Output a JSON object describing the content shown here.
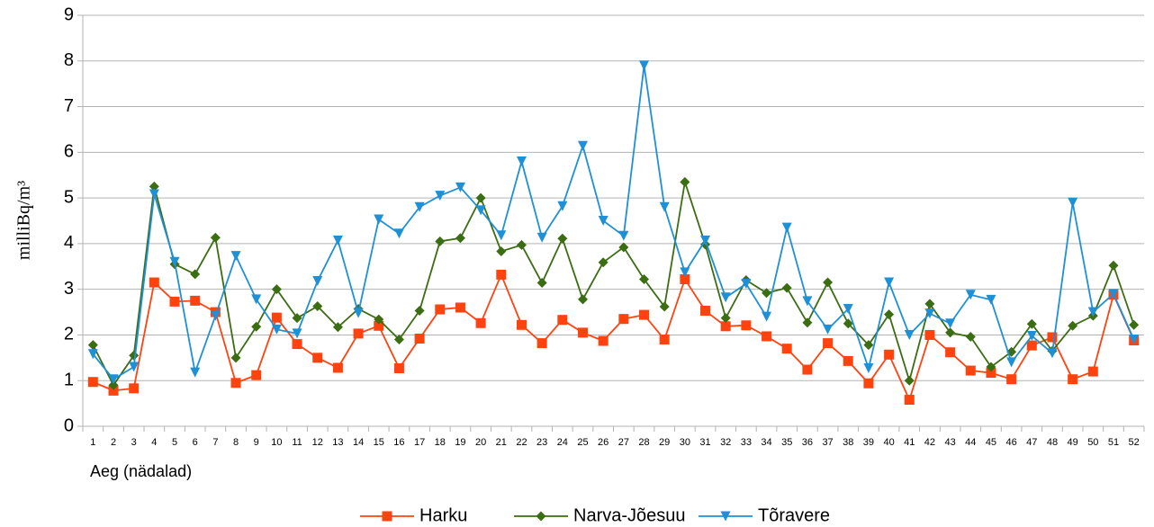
{
  "chart_data": {
    "type": "line",
    "y_label": "milliBq/m³",
    "x_label": "Aeg (nädalad)",
    "categories": [
      1,
      2,
      3,
      4,
      5,
      6,
      7,
      8,
      9,
      10,
      11,
      12,
      13,
      14,
      15,
      16,
      17,
      18,
      19,
      20,
      21,
      22,
      23,
      24,
      25,
      26,
      27,
      28,
      29,
      30,
      31,
      32,
      33,
      34,
      35,
      36,
      37,
      38,
      39,
      40,
      41,
      42,
      43,
      44,
      45,
      46,
      47,
      48,
      49,
      50,
      51,
      52
    ],
    "ylim": [
      0,
      9
    ],
    "yticks": [
      0,
      1,
      2,
      3,
      4,
      5,
      6,
      7,
      8,
      9
    ],
    "grid": true,
    "legend": "bottom",
    "series": [
      {
        "name": "Harku",
        "color": "#ff420e",
        "marker": "square",
        "values": [
          0.97,
          0.78,
          0.83,
          3.15,
          2.73,
          2.75,
          2.5,
          0.95,
          1.12,
          2.38,
          1.8,
          1.5,
          1.28,
          2.03,
          2.2,
          1.27,
          1.92,
          2.56,
          2.6,
          2.26,
          3.32,
          2.22,
          1.82,
          2.33,
          2.05,
          1.87,
          2.35,
          2.44,
          1.9,
          3.22,
          2.53,
          2.19,
          2.21,
          1.97,
          1.7,
          1.24,
          1.82,
          1.43,
          0.94,
          1.57,
          0.58,
          2.0,
          1.62,
          1.22,
          1.17,
          1.03,
          1.77,
          1.95,
          1.03,
          1.2,
          2.88,
          1.88
        ]
      },
      {
        "name": "Narva-Jõesuu",
        "color": "#3b6d12",
        "marker": "diamond",
        "values": [
          1.78,
          0.9,
          1.55,
          5.25,
          3.55,
          3.33,
          4.13,
          1.5,
          2.18,
          3.0,
          2.37,
          2.63,
          2.17,
          2.57,
          2.34,
          1.9,
          2.53,
          4.05,
          4.12,
          5.0,
          3.83,
          3.97,
          3.14,
          4.11,
          2.78,
          3.59,
          3.92,
          3.22,
          2.62,
          5.35,
          3.98,
          2.37,
          3.2,
          2.92,
          3.03,
          2.27,
          3.15,
          2.25,
          1.78,
          2.45,
          1.0,
          2.68,
          2.05,
          1.96,
          1.3,
          1.63,
          2.24,
          1.65,
          2.2,
          2.42,
          3.52,
          2.22
        ]
      },
      {
        "name": "Tõravere",
        "color": "#1e90d6",
        "marker": "triangle-down",
        "values": [
          1.58,
          1.03,
          1.3,
          5.08,
          3.6,
          1.18,
          2.42,
          3.73,
          2.78,
          2.12,
          2.03,
          3.18,
          4.07,
          2.48,
          4.53,
          4.22,
          4.8,
          5.05,
          5.23,
          4.73,
          4.18,
          5.8,
          4.13,
          4.82,
          6.14,
          4.5,
          4.17,
          7.9,
          4.8,
          3.37,
          4.07,
          2.82,
          3.12,
          2.4,
          4.35,
          2.74,
          2.12,
          2.57,
          1.27,
          3.15,
          2.0,
          2.47,
          2.25,
          2.88,
          2.77,
          1.4,
          1.98,
          1.6,
          4.9,
          2.5,
          2.9,
          1.9
        ]
      }
    ]
  }
}
